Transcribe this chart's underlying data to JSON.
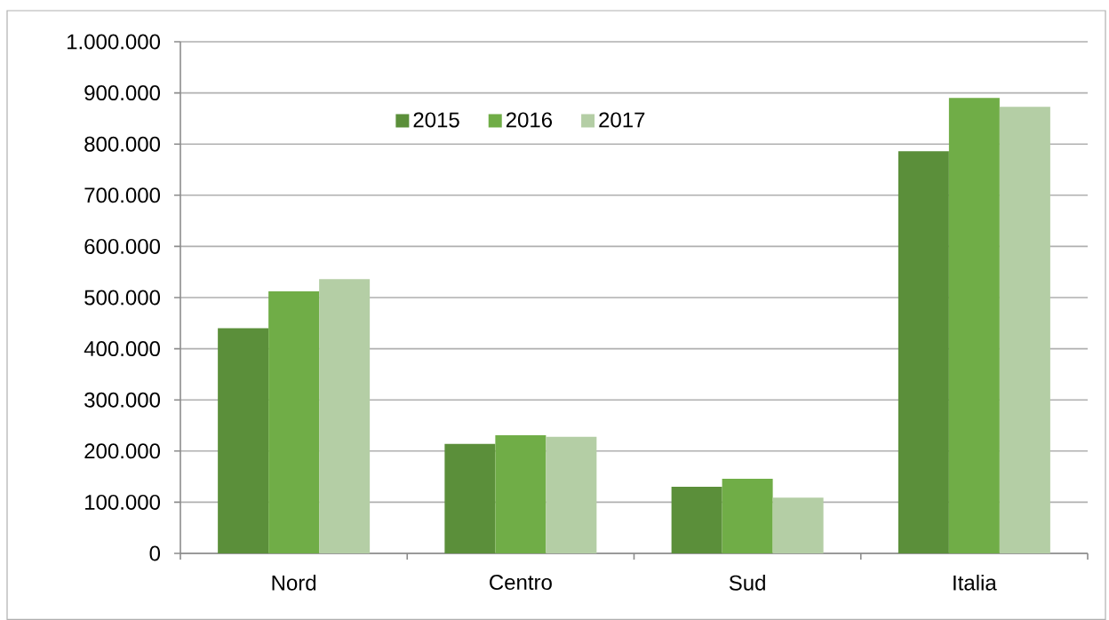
{
  "chart_data": {
    "type": "bar",
    "categories": [
      "Nord",
      "Centro",
      "Sud",
      "Italia"
    ],
    "series": [
      {
        "name": "2015",
        "color": "#5b8f3a",
        "values": [
          440000,
          214000,
          130000,
          786000
        ]
      },
      {
        "name": "2016",
        "color": "#70ad47",
        "values": [
          512000,
          231000,
          146000,
          890000
        ]
      },
      {
        "name": "2017",
        "color": "#b4cea5",
        "values": [
          536000,
          228000,
          109000,
          873000
        ]
      }
    ],
    "ylim": [
      0,
      1000000
    ],
    "yticks": [
      0,
      {
        "value": 100000,
        "label": "100.000"
      },
      {
        "value": 200000,
        "label": "200.000"
      },
      {
        "value": 300000,
        "label": "300.000"
      },
      {
        "value": 400000,
        "label": "400.000"
      },
      {
        "value": 500000,
        "label": "500.000"
      },
      {
        "value": 600000,
        "label": "600.000"
      },
      {
        "value": 700000,
        "label": "700.000"
      },
      {
        "value": 800000,
        "label": "800.000"
      },
      {
        "value": 900000,
        "label": "900.000"
      },
      {
        "value": 1000000,
        "label": "1.000.000"
      }
    ],
    "grid": "y",
    "legend": "top"
  }
}
